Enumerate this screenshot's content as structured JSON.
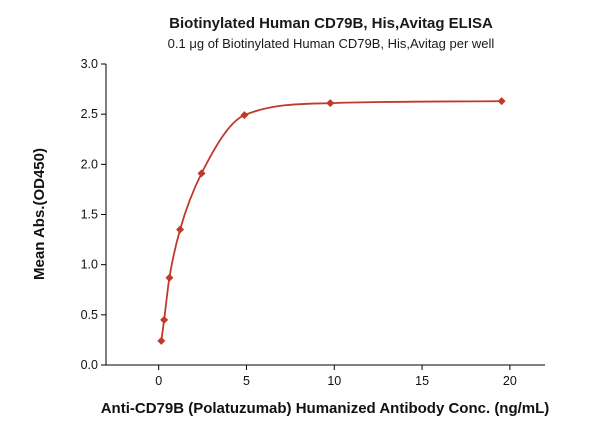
{
  "chart_data": {
    "type": "scatter",
    "title": "Biotinylated Human CD79B, His,Avitag ELISA",
    "subtitle": "0.1 μg of Biotinylated Human CD79B, His,Avitag per well",
    "xlabel": "Anti-CD79B (Polatuzumab) Humanized Antibody Conc. (ng/mL)",
    "ylabel": "Mean Abs.(OD450)",
    "xlim": [
      -3,
      22
    ],
    "ylim": [
      0,
      3.0
    ],
    "x_ticks": [
      0,
      5,
      10,
      15,
      20
    ],
    "x_tick_labels": [
      "0",
      "5",
      "10",
      "15",
      "20"
    ],
    "y_ticks": [
      0,
      0.5,
      1.0,
      1.5,
      2.0,
      2.5,
      3.0
    ],
    "y_tick_labels": [
      "0.0",
      "0.5",
      "1.0",
      "1.5",
      "2.0",
      "2.5",
      "3.0"
    ],
    "grid": false,
    "legend": "none",
    "color": "#c0392b",
    "series": [
      {
        "marker": "diamond",
        "fit_curve": true,
        "x": [
          0.15,
          0.31,
          0.61,
          1.22,
          2.44,
          4.88,
          9.77,
          19.53
        ],
        "y": [
          0.24,
          0.45,
          0.87,
          1.35,
          1.91,
          2.49,
          2.61,
          2.63
        ]
      }
    ]
  }
}
